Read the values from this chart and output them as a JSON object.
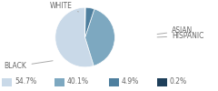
{
  "labels": [
    "WHITE",
    "BLACK",
    "ASIAN",
    "HISPANIC"
  ],
  "values": [
    54.7,
    40.1,
    4.9,
    0.2
  ],
  "colors": [
    "#c9d9e8",
    "#7da8c0",
    "#4e7f9e",
    "#1e3f5a"
  ],
  "legend_labels": [
    "54.7%",
    "40.1%",
    "4.9%",
    "0.2%"
  ],
  "startangle": 90,
  "label_fontsize": 5.5,
  "label_color": "#666666",
  "legend_fontsize": 5.5
}
